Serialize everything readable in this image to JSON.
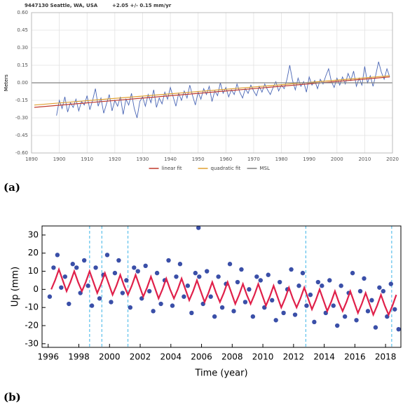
{
  "chart_data": [
    {
      "type": "line",
      "title": "9447130 Seattle, WA, USA",
      "subtitle": "+2.05 +/- 0.15 mm/yr",
      "ylabel": "Meters",
      "panel_label": "(a)",
      "xlim": [
        1890,
        2020
      ],
      "ylim": [
        -0.6,
        0.6
      ],
      "xticks": [
        1890,
        1900,
        1910,
        1920,
        1930,
        1940,
        1950,
        1960,
        1970,
        1980,
        1990,
        2000,
        2010,
        2020
      ],
      "yticks": [
        {
          "value": -0.6,
          "label": "-0.60"
        },
        {
          "value": -0.45,
          "label": "-0.45"
        },
        {
          "value": -0.3,
          "label": "-0.30"
        },
        {
          "value": -0.15,
          "label": "-0.15"
        },
        {
          "value": 0,
          "label": "0.00"
        },
        {
          "value": 0.15,
          "label": "0.15"
        },
        {
          "value": 0.3,
          "label": "0.30"
        },
        {
          "value": 0.45,
          "label": "0.45"
        },
        {
          "value": 0.6,
          "label": "0.60"
        }
      ],
      "grid": true,
      "legend": "bottom",
      "series": [
        {
          "color": "#4a66b5",
          "x": [
            1899,
            1900,
            1901,
            1902,
            1903,
            1904,
            1905,
            1906,
            1907,
            1908,
            1909,
            1910,
            1911,
            1912,
            1913,
            1914,
            1915,
            1916,
            1917,
            1918,
            1919,
            1920,
            1921,
            1922,
            1923,
            1924,
            1925,
            1926,
            1927,
            1928,
            1929,
            1930,
            1931,
            1932,
            1933,
            1934,
            1935,
            1936,
            1937,
            1938,
            1939,
            1940,
            1941,
            1942,
            1943,
            1944,
            1945,
            1946,
            1947,
            1948,
            1949,
            1950,
            1951,
            1952,
            1953,
            1954,
            1955,
            1956,
            1957,
            1958,
            1959,
            1960,
            1961,
            1962,
            1963,
            1964,
            1965,
            1966,
            1967,
            1968,
            1969,
            1970,
            1971,
            1972,
            1973,
            1974,
            1975,
            1976,
            1977,
            1978,
            1979,
            1980,
            1981,
            1982,
            1983,
            1984,
            1985,
            1986,
            1987,
            1988,
            1989,
            1990,
            1991,
            1992,
            1993,
            1994,
            1995,
            1996,
            1997,
            1998,
            1999,
            2000,
            2001,
            2002,
            2003,
            2004,
            2005,
            2006,
            2007,
            2008,
            2009,
            2010,
            2011,
            2012,
            2013,
            2014,
            2015,
            2016,
            2017,
            2018,
            2019
          ],
          "values": [
            -0.28,
            -0.15,
            -0.22,
            -0.12,
            -0.25,
            -0.17,
            -0.21,
            -0.14,
            -0.24,
            -0.16,
            -0.19,
            -0.11,
            -0.23,
            -0.15,
            -0.05,
            -0.2,
            -0.13,
            -0.26,
            -0.18,
            -0.1,
            -0.24,
            -0.15,
            -0.2,
            -0.12,
            -0.27,
            -0.14,
            -0.19,
            -0.09,
            -0.22,
            -0.3,
            -0.16,
            -0.12,
            -0.2,
            -0.1,
            -0.17,
            -0.06,
            -0.21,
            -0.13,
            -0.18,
            -0.08,
            -0.14,
            -0.04,
            -0.12,
            -0.2,
            -0.09,
            -0.15,
            -0.07,
            -0.13,
            -0.02,
            -0.11,
            -0.19,
            -0.08,
            -0.14,
            -0.05,
            -0.1,
            -0.03,
            -0.16,
            -0.07,
            -0.11,
            0.0,
            -0.09,
            -0.04,
            -0.12,
            -0.06,
            -0.1,
            -0.01,
            -0.08,
            -0.13,
            -0.05,
            -0.09,
            -0.02,
            -0.07,
            -0.11,
            -0.03,
            -0.08,
            -0.01,
            -0.06,
            -0.1,
            -0.04,
            0.01,
            -0.07,
            -0.02,
            -0.05,
            0.03,
            0.15,
            0.02,
            -0.06,
            0.04,
            -0.03,
            0.01,
            -0.08,
            0.05,
            -0.02,
            0.02,
            -0.05,
            0.03,
            -0.01,
            0.06,
            0.12,
            0.01,
            -0.04,
            0.04,
            -0.02,
            0.05,
            -0.01,
            0.08,
            0.02,
            0.1,
            -0.03,
            0.04,
            -0.02,
            0.14,
            0.0,
            0.06,
            -0.03,
            0.07,
            0.18,
            0.09,
            0.03,
            0.12,
            0.05
          ]
        },
        {
          "name": "linear fit",
          "color": "#c0392b",
          "x": [
            1891,
            2019
          ],
          "values": [
            -0.21,
            0.05
          ]
        },
        {
          "name": "quadratic fit",
          "color": "#e0a030",
          "x": [
            1891,
            2019
          ],
          "values": [
            -0.19,
            0.06
          ]
        },
        {
          "name": "MSL",
          "color": "#808080",
          "x": [
            1890,
            2020
          ],
          "values": [
            0,
            0
          ]
        }
      ]
    },
    {
      "type": "scatter",
      "xlabel": "Time (year)",
      "ylabel": "Up (mm)",
      "panel_label": "(b)",
      "xlim": [
        1995.6,
        2019
      ],
      "ylim": [
        -32,
        35
      ],
      "xticks": [
        1996,
        1998,
        2000,
        2002,
        2004,
        2006,
        2008,
        2010,
        2012,
        2014,
        2016,
        2018
      ],
      "yticks": [
        -30,
        -20,
        -10,
        0,
        10,
        20,
        30
      ],
      "grid": false,
      "vlines": {
        "color": "#5bc0eb",
        "values": [
          1998.7,
          1999.5,
          2001.2,
          2012.8,
          2018.4
        ]
      },
      "series": [
        {
          "mark": "point",
          "color": "#3a4fa8",
          "x": [
            1996.1,
            1996.35,
            1996.6,
            1996.85,
            1997.1,
            1997.35,
            1997.6,
            1997.85,
            1998.1,
            1998.35,
            1998.6,
            1998.85,
            1999.1,
            1999.35,
            1999.6,
            1999.85,
            2000.1,
            2000.35,
            2000.6,
            2000.85,
            2001.1,
            2001.35,
            2001.6,
            2001.85,
            2002.1,
            2002.35,
            2002.6,
            2002.85,
            2003.1,
            2003.35,
            2003.6,
            2003.85,
            2004.1,
            2004.35,
            2004.6,
            2004.85,
            2005.1,
            2005.35,
            2005.6,
            2005.85,
            2006.1,
            2006.35,
            2006.6,
            2006.85,
            2007.1,
            2007.35,
            2007.6,
            2007.85,
            2008.1,
            2008.35,
            2008.6,
            2008.85,
            2009.1,
            2009.35,
            2009.6,
            2009.85,
            2010.1,
            2010.35,
            2010.6,
            2010.85,
            2011.1,
            2011.35,
            2011.6,
            2011.85,
            2012.1,
            2012.35,
            2012.6,
            2012.85,
            2013.1,
            2013.35,
            2013.6,
            2013.85,
            2014.1,
            2014.35,
            2014.6,
            2014.85,
            2015.1,
            2015.35,
            2015.6,
            2015.85,
            2016.1,
            2016.35,
            2016.6,
            2016.85,
            2017.1,
            2017.35,
            2017.6,
            2017.85,
            2018.1,
            2018.35,
            2018.6,
            2018.85,
            2005.8
          ],
          "values": [
            -4,
            12,
            19,
            1,
            7,
            -8,
            14,
            12,
            -2,
            16,
            2,
            -9,
            12,
            -5,
            8,
            19,
            -7,
            9,
            16,
            -2,
            5,
            -10,
            12,
            10,
            -5,
            13,
            -1,
            -12,
            9,
            -8,
            5,
            16,
            -9,
            7,
            14,
            -4,
            2,
            -13,
            9,
            7,
            -8,
            10,
            -4,
            -15,
            7,
            -10,
            3,
            14,
            -12,
            4,
            11,
            -7,
            0,
            -15,
            7,
            5,
            -10,
            8,
            -6,
            -17,
            4,
            -13,
            0,
            11,
            -14,
            2,
            9,
            -9,
            -3,
            -18,
            4,
            2,
            -13,
            5,
            -9,
            -20,
            2,
            -15,
            -2,
            9,
            -17,
            -1,
            6,
            -12,
            -6,
            -21,
            1,
            -1,
            -15,
            3,
            -11,
            -22,
            34
          ]
        },
        {
          "mark": "line",
          "color": "#e0204a",
          "x": [
            1996.2,
            1996.45,
            1996.7,
            1996.95,
            1997.2,
            1997.45,
            1997.7,
            1997.95,
            1998.2,
            1998.45,
            1998.7,
            1998.95,
            1999.2,
            1999.45,
            1999.7,
            1999.95,
            2000.2,
            2000.45,
            2000.7,
            2000.95,
            2001.2,
            2001.45,
            2001.7,
            2001.95,
            2002.2,
            2002.45,
            2002.7,
            2002.95,
            2003.2,
            2003.45,
            2003.7,
            2003.95,
            2004.2,
            2004.45,
            2004.7,
            2004.95,
            2005.2,
            2005.45,
            2005.7,
            2005.95,
            2006.2,
            2006.45,
            2006.7,
            2006.95,
            2007.2,
            2007.45,
            2007.7,
            2007.95,
            2008.2,
            2008.45,
            2008.7,
            2008.95,
            2009.2,
            2009.45,
            2009.7,
            2009.95,
            2010.2,
            2010.45,
            2010.7,
            2010.95,
            2011.2,
            2011.45,
            2011.7,
            2011.95,
            2012.2,
            2012.45,
            2012.7,
            2012.95,
            2013.2,
            2013.45,
            2013.7,
            2013.95,
            2014.2,
            2014.45,
            2014.7,
            2014.95,
            2015.2,
            2015.45,
            2015.7,
            2015.95,
            2016.2,
            2016.45,
            2016.7,
            2016.95,
            2017.2,
            2017.45,
            2017.7,
            2017.95,
            2018.2,
            2018.45,
            2018.7
          ],
          "values": [
            0,
            5,
            11,
            5,
            -1,
            4,
            10,
            4,
            -1,
            4,
            10,
            4,
            -2,
            3,
            9,
            3,
            -3,
            2,
            8,
            2,
            -3,
            2,
            8,
            2,
            -4,
            1,
            7,
            1,
            -5,
            0,
            6,
            0,
            -5,
            0,
            6,
            0,
            -6,
            -1,
            5,
            -1,
            -7,
            -2,
            4,
            -2,
            -7,
            -2,
            4,
            -2,
            -8,
            -3,
            3,
            -3,
            -8,
            -3,
            3,
            -3,
            -9,
            -4,
            2,
            -4,
            -10,
            -5,
            1,
            -5,
            -10,
            -5,
            1,
            -5,
            -11,
            -6,
            0,
            -6,
            -12,
            -7,
            -1,
            -7,
            -12,
            -7,
            -1,
            -7,
            -13,
            -8,
            -2,
            -8,
            -14,
            -9,
            -3,
            -9,
            -14,
            -9,
            -3
          ]
        }
      ]
    }
  ]
}
